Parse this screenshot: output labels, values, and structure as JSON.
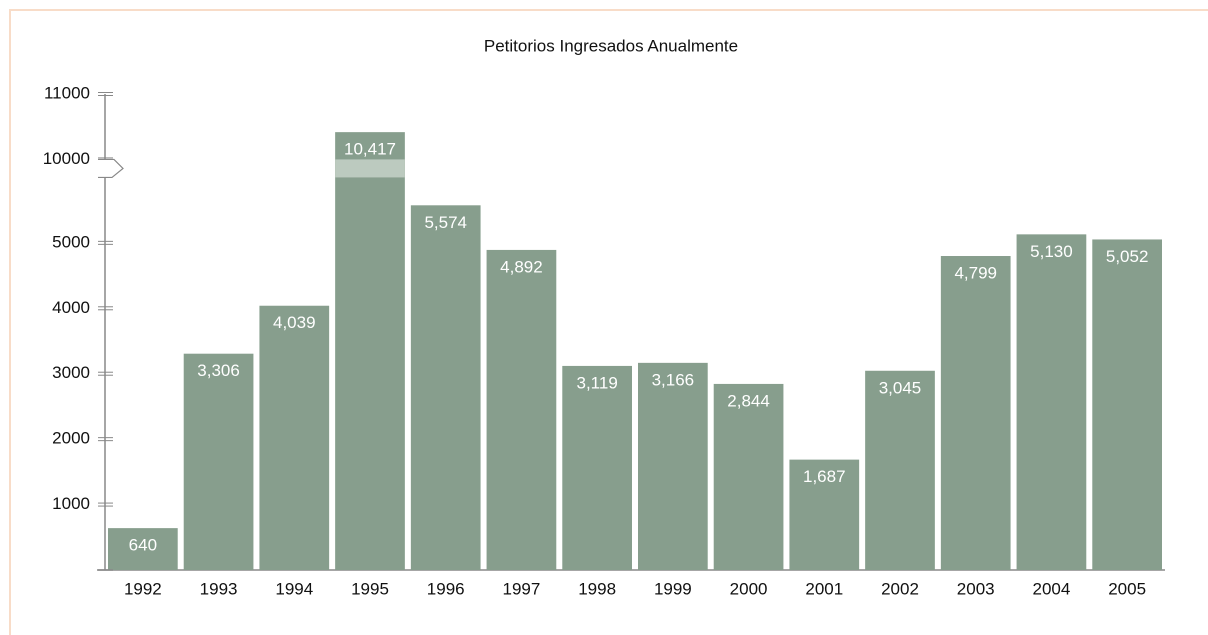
{
  "chart_data": {
    "type": "bar",
    "title": "Petitorios Ingresados Anualmente",
    "categories": [
      "1992",
      "1993",
      "1994",
      "1995",
      "1996",
      "1997",
      "1998",
      "1999",
      "2000",
      "2001",
      "2002",
      "2003",
      "2004",
      "2005"
    ],
    "values": [
      640,
      3306,
      4039,
      10417,
      5574,
      4892,
      3119,
      3166,
      2844,
      1687,
      3045,
      4799,
      5130,
      5052
    ],
    "value_labels": [
      "640",
      "3,306",
      "4,039",
      "10,417",
      "5,574",
      "4,892",
      "3,119",
      "3,166",
      "2,844",
      "1,687",
      "3,045",
      "4,799",
      "5,130",
      "5,052"
    ],
    "color": "#879e8d",
    "ylim": [
      0,
      11000
    ],
    "y_break": [
      6000,
      10000
    ],
    "yticks": [
      1000,
      2000,
      3000,
      4000,
      5000,
      10000,
      11000
    ]
  }
}
